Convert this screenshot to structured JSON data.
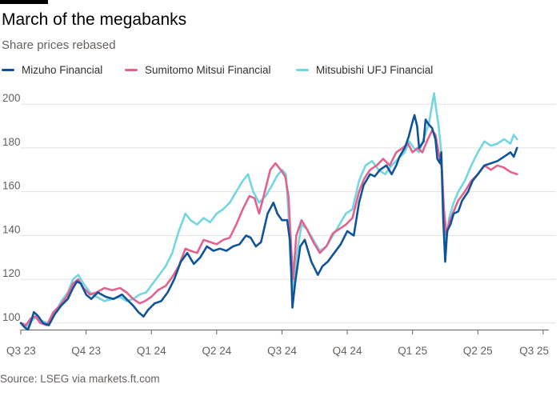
{
  "header": {
    "title": "March of the megabanks",
    "subtitle": "Share prices rebased"
  },
  "footer": {
    "source": "Source: LSEG via markets.ft.com"
  },
  "legend": {
    "items": [
      {
        "label": "Mizuho Financial",
        "color": "#0f5499"
      },
      {
        "label": "Sumitomo Mitsui Financial",
        "color": "#e3628d"
      },
      {
        "label": "Mitsubishi UFJ Financial",
        "color": "#73d6e1"
      }
    ]
  },
  "chart_data": {
    "type": "line",
    "title": "March of the megabanks",
    "subtitle": "Share prices rebased",
    "xlabel": "",
    "ylabel": "",
    "x_ticks": [
      "Q3 23",
      "Q4 23",
      "Q1 24",
      "Q2 24",
      "Q3 24",
      "Q4 24",
      "Q1 25",
      "Q2 25",
      "Q3 25"
    ],
    "x_range": [
      0,
      8.05
    ],
    "ylim": [
      97,
      203
    ],
    "y_ticks": [
      100,
      120,
      140,
      160,
      180,
      200
    ],
    "grid": true,
    "legend_position": "top",
    "series": [
      {
        "name": "Mizuho Financial",
        "color": "#0f5499",
        "points": [
          [
            0,
            100
          ],
          [
            0.06,
            98
          ],
          [
            0.11,
            97
          ],
          [
            0.16,
            101
          ],
          [
            0.2,
            105
          ],
          [
            0.27,
            103
          ],
          [
            0.34,
            100
          ],
          [
            0.43,
            99
          ],
          [
            0.52,
            104
          ],
          [
            0.62,
            108
          ],
          [
            0.72,
            111
          ],
          [
            0.8,
            116
          ],
          [
            0.86,
            119
          ],
          [
            0.92,
            118
          ],
          [
            1.0,
            113
          ],
          [
            1.08,
            111
          ],
          [
            1.18,
            114
          ],
          [
            1.3,
            112
          ],
          [
            1.42,
            111
          ],
          [
            1.55,
            113
          ],
          [
            1.65,
            110
          ],
          [
            1.72,
            108
          ],
          [
            1.8,
            105
          ],
          [
            1.88,
            103
          ],
          [
            1.95,
            106
          ],
          [
            2.05,
            109
          ],
          [
            2.15,
            110
          ],
          [
            2.25,
            114
          ],
          [
            2.35,
            120
          ],
          [
            2.45,
            128
          ],
          [
            2.55,
            132
          ],
          [
            2.65,
            127
          ],
          [
            2.75,
            130
          ],
          [
            2.85,
            135
          ],
          [
            2.95,
            133
          ],
          [
            3.05,
            134
          ],
          [
            3.15,
            133
          ],
          [
            3.25,
            135
          ],
          [
            3.35,
            136
          ],
          [
            3.45,
            140
          ],
          [
            3.52,
            139
          ],
          [
            3.6,
            135
          ],
          [
            3.68,
            137
          ],
          [
            3.78,
            150
          ],
          [
            3.87,
            155
          ],
          [
            3.93,
            150
          ],
          [
            4.0,
            147
          ],
          [
            4.08,
            147
          ],
          [
            4.12,
            138
          ],
          [
            4.14,
            125
          ],
          [
            4.16,
            107
          ],
          [
            4.2,
            118
          ],
          [
            4.28,
            135
          ],
          [
            4.35,
            138
          ],
          [
            4.45,
            128
          ],
          [
            4.55,
            122
          ],
          [
            4.62,
            126
          ],
          [
            4.7,
            128
          ],
          [
            4.8,
            132
          ],
          [
            4.9,
            136
          ],
          [
            5.0,
            142
          ],
          [
            5.1,
            140
          ],
          [
            5.18,
            155
          ],
          [
            5.25,
            163
          ],
          [
            5.35,
            168
          ],
          [
            5.42,
            167
          ],
          [
            5.5,
            170
          ],
          [
            5.6,
            172
          ],
          [
            5.68,
            168
          ],
          [
            5.75,
            172
          ],
          [
            5.8,
            176
          ],
          [
            5.88,
            180
          ],
          [
            5.94,
            185
          ],
          [
            6.0,
            192
          ],
          [
            6.03,
            195
          ],
          [
            6.07,
            190
          ],
          [
            6.1,
            180
          ],
          [
            6.17,
            183
          ],
          [
            6.2,
            193
          ],
          [
            6.24,
            191
          ],
          [
            6.3,
            189
          ],
          [
            6.35,
            184
          ],
          [
            6.38,
            175
          ],
          [
            6.42,
            173
          ],
          [
            6.44,
            178
          ],
          [
            6.47,
            148
          ],
          [
            6.5,
            128
          ],
          [
            6.53,
            142
          ],
          [
            6.58,
            145
          ],
          [
            6.63,
            150
          ],
          [
            6.7,
            151
          ],
          [
            6.76,
            156
          ],
          [
            6.85,
            160
          ],
          [
            6.92,
            165
          ],
          [
            7.0,
            168
          ],
          [
            7.1,
            172
          ],
          [
            7.2,
            173
          ],
          [
            7.3,
            174
          ],
          [
            7.4,
            176
          ],
          [
            7.5,
            178
          ],
          [
            7.55,
            176
          ],
          [
            7.6,
            180
          ]
        ]
      },
      {
        "name": "Sumitomo Mitsui Financial",
        "color": "#e3628d",
        "points": [
          [
            0,
            100
          ],
          [
            0.08,
            99
          ],
          [
            0.15,
            102
          ],
          [
            0.22,
            103
          ],
          [
            0.3,
            100
          ],
          [
            0.4,
            99
          ],
          [
            0.5,
            105
          ],
          [
            0.6,
            108
          ],
          [
            0.7,
            112
          ],
          [
            0.8,
            118
          ],
          [
            0.88,
            120
          ],
          [
            0.96,
            116
          ],
          [
            1.06,
            113
          ],
          [
            1.16,
            114
          ],
          [
            1.28,
            116
          ],
          [
            1.4,
            115
          ],
          [
            1.52,
            116
          ],
          [
            1.62,
            114
          ],
          [
            1.72,
            111
          ],
          [
            1.82,
            109
          ],
          [
            1.9,
            110
          ],
          [
            2.0,
            112
          ],
          [
            2.1,
            115
          ],
          [
            2.22,
            117
          ],
          [
            2.32,
            121
          ],
          [
            2.42,
            126
          ],
          [
            2.52,
            134
          ],
          [
            2.6,
            133
          ],
          [
            2.7,
            132
          ],
          [
            2.8,
            138
          ],
          [
            2.9,
            137
          ],
          [
            3.0,
            136
          ],
          [
            3.1,
            138
          ],
          [
            3.2,
            139
          ],
          [
            3.3,
            145
          ],
          [
            3.4,
            152
          ],
          [
            3.5,
            158
          ],
          [
            3.58,
            157
          ],
          [
            3.65,
            150
          ],
          [
            3.72,
            158
          ],
          [
            3.82,
            170
          ],
          [
            3.9,
            173
          ],
          [
            3.98,
            170
          ],
          [
            4.05,
            167
          ],
          [
            4.1,
            158
          ],
          [
            4.14,
            135
          ],
          [
            4.17,
            120
          ],
          [
            4.22,
            140
          ],
          [
            4.3,
            147
          ],
          [
            4.38,
            143
          ],
          [
            4.48,
            137
          ],
          [
            4.58,
            132
          ],
          [
            4.68,
            135
          ],
          [
            4.78,
            141
          ],
          [
            4.88,
            143
          ],
          [
            4.98,
            145
          ],
          [
            5.08,
            148
          ],
          [
            5.18,
            160
          ],
          [
            5.26,
            166
          ],
          [
            5.35,
            170
          ],
          [
            5.45,
            172
          ],
          [
            5.55,
            175
          ],
          [
            5.65,
            172
          ],
          [
            5.75,
            178
          ],
          [
            5.85,
            180
          ],
          [
            5.93,
            182
          ],
          [
            6.0,
            178
          ],
          [
            6.08,
            180
          ],
          [
            6.15,
            178
          ],
          [
            6.22,
            183
          ],
          [
            6.3,
            188
          ],
          [
            6.35,
            186
          ],
          [
            6.4,
            178
          ],
          [
            6.45,
            170
          ],
          [
            6.48,
            152
          ],
          [
            6.52,
            140
          ],
          [
            6.56,
            146
          ],
          [
            6.63,
            151
          ],
          [
            6.7,
            156
          ],
          [
            6.8,
            160
          ],
          [
            6.9,
            165
          ],
          [
            7.0,
            168
          ],
          [
            7.1,
            172
          ],
          [
            7.2,
            170
          ],
          [
            7.3,
            172
          ],
          [
            7.4,
            171
          ],
          [
            7.5,
            169
          ],
          [
            7.6,
            168
          ]
        ]
      },
      {
        "name": "Mitsubishi UFJ Financial",
        "color": "#73d6e1",
        "points": [
          [
            0,
            100
          ],
          [
            0.08,
            98
          ],
          [
            0.16,
            101
          ],
          [
            0.24,
            103
          ],
          [
            0.32,
            101
          ],
          [
            0.42,
            100
          ],
          [
            0.52,
            104
          ],
          [
            0.62,
            110
          ],
          [
            0.72,
            114
          ],
          [
            0.8,
            120
          ],
          [
            0.88,
            122
          ],
          [
            0.96,
            118
          ],
          [
            1.06,
            114
          ],
          [
            1.16,
            112
          ],
          [
            1.28,
            110
          ],
          [
            1.4,
            111
          ],
          [
            1.52,
            112
          ],
          [
            1.62,
            110
          ],
          [
            1.72,
            111
          ],
          [
            1.82,
            113
          ],
          [
            1.92,
            114
          ],
          [
            2.02,
            118
          ],
          [
            2.12,
            122
          ],
          [
            2.22,
            126
          ],
          [
            2.32,
            132
          ],
          [
            2.42,
            142
          ],
          [
            2.52,
            150
          ],
          [
            2.6,
            147
          ],
          [
            2.7,
            145
          ],
          [
            2.8,
            148
          ],
          [
            2.9,
            146
          ],
          [
            3.0,
            150
          ],
          [
            3.1,
            152
          ],
          [
            3.2,
            155
          ],
          [
            3.3,
            160
          ],
          [
            3.4,
            165
          ],
          [
            3.48,
            168
          ],
          [
            3.56,
            160
          ],
          [
            3.65,
            155
          ],
          [
            3.75,
            158
          ],
          [
            3.85,
            163
          ],
          [
            3.92,
            167
          ],
          [
            4.0,
            170
          ],
          [
            4.06,
            168
          ],
          [
            4.1,
            150
          ],
          [
            4.13,
            128
          ],
          [
            4.17,
            115
          ],
          [
            4.22,
            130
          ],
          [
            4.3,
            145
          ],
          [
            4.38,
            143
          ],
          [
            4.48,
            138
          ],
          [
            4.58,
            133
          ],
          [
            4.68,
            135
          ],
          [
            4.78,
            140
          ],
          [
            4.88,
            145
          ],
          [
            4.98,
            150
          ],
          [
            5.08,
            152
          ],
          [
            5.18,
            165
          ],
          [
            5.28,
            172
          ],
          [
            5.38,
            174
          ],
          [
            5.48,
            170
          ],
          [
            5.58,
            168
          ],
          [
            5.68,
            172
          ],
          [
            5.78,
            175
          ],
          [
            5.88,
            178
          ],
          [
            5.95,
            183
          ],
          [
            6.02,
            180
          ],
          [
            6.1,
            178
          ],
          [
            6.18,
            185
          ],
          [
            6.25,
            191
          ],
          [
            6.3,
            200
          ],
          [
            6.33,
            205
          ],
          [
            6.36,
            198
          ],
          [
            6.4,
            190
          ],
          [
            6.44,
            178
          ],
          [
            6.48,
            148
          ],
          [
            6.52,
            138
          ],
          [
            6.56,
            148
          ],
          [
            6.63,
            155
          ],
          [
            6.7,
            160
          ],
          [
            6.8,
            165
          ],
          [
            6.9,
            172
          ],
          [
            7.0,
            178
          ],
          [
            7.1,
            183
          ],
          [
            7.2,
            181
          ],
          [
            7.3,
            182
          ],
          [
            7.4,
            184
          ],
          [
            7.5,
            182
          ],
          [
            7.55,
            186
          ],
          [
            7.6,
            184
          ]
        ]
      }
    ]
  }
}
